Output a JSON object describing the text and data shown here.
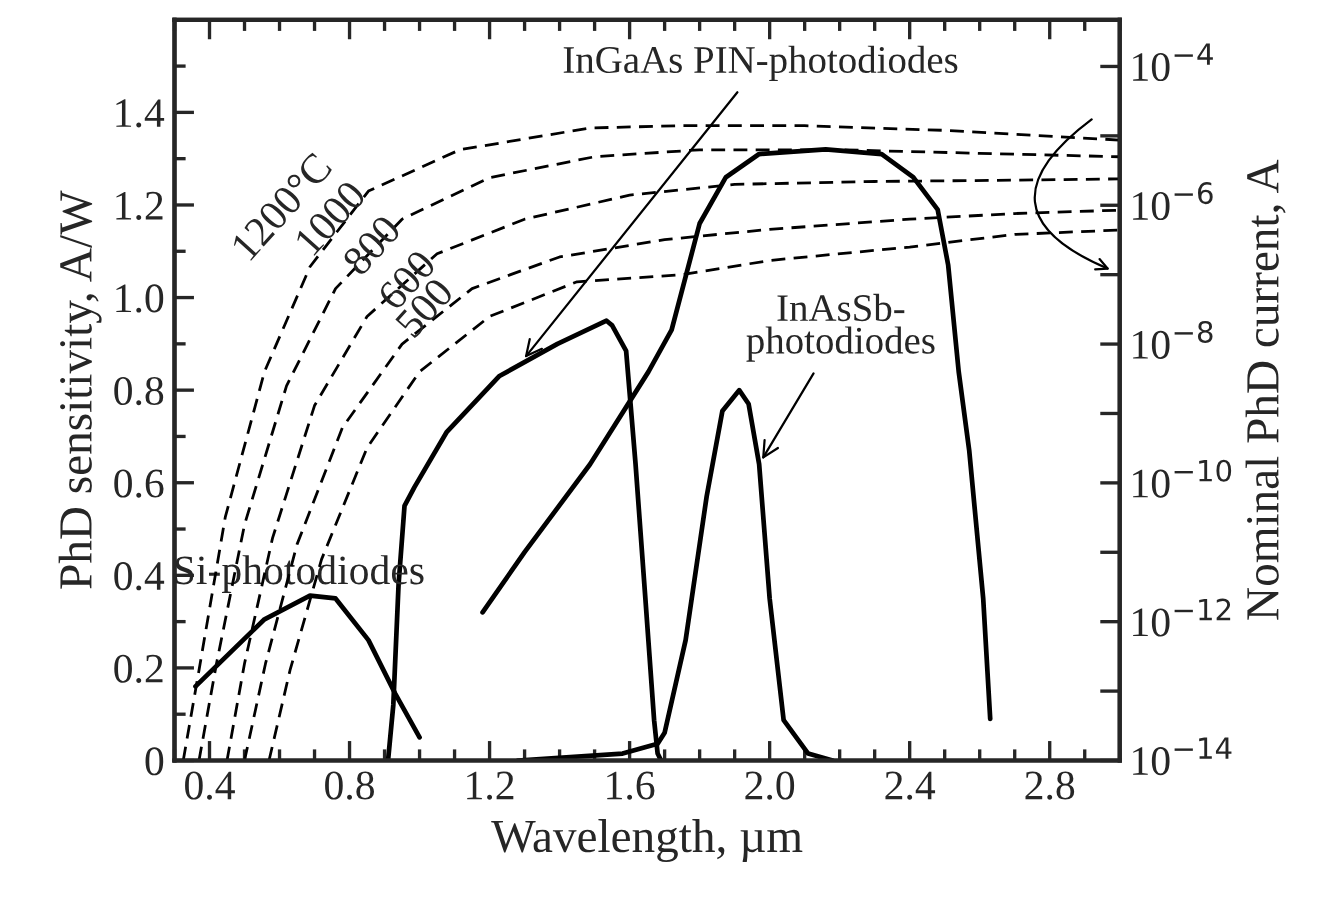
{
  "chart_data": {
    "type": "line",
    "xlabel": "Wavelength, µm",
    "ylabel": "PhD sensitivity, A/W",
    "y2label": "Nominal PhD current, A",
    "xlim": [
      0.3,
      3.0
    ],
    "xticks": [
      0.4,
      0.8,
      1.2,
      1.6,
      {
        "value": 2,
        "label": "2.0"
      },
      2.4,
      2.8
    ],
    "ylim": [
      0,
      1.6
    ],
    "yticks": [
      0,
      0.2,
      0.4,
      0.6,
      0.8,
      {
        "value": 1,
        "label": "1.0"
      },
      1.2,
      1.4
    ],
    "y2lim": [
      1e-14,
      0.00047
    ],
    "log": "y2",
    "y2ticks": [
      {
        "value": 1e-14,
        "label": "10$^{−14}$"
      },
      {
        "value": 1e-13,
        "label": null
      },
      {
        "value": 1e-12,
        "label": "10$^{−12}$"
      },
      {
        "value": 1e-11,
        "label": null
      },
      {
        "value": 1e-10,
        "label": "10$^{−10}$"
      },
      {
        "value": 1e-09,
        "label": null
      },
      {
        "value": 1e-08,
        "label": "10$^{−8}$"
      },
      {
        "value": 1e-07,
        "label": null
      },
      {
        "value": 1e-06,
        "label": "10$^{−6}$"
      },
      {
        "value": 1e-05,
        "label": null
      },
      {
        "value": 0.0001,
        "label": "10$^{−4}$"
      }
    ],
    "grid": false,
    "legend": false,
    "series": [
      {
        "color": "#000000",
        "line_style": "solid",
        "x": [
          0.36,
          0.557,
          0.687,
          0.76,
          0.854,
          0.93,
          1.0
        ],
        "values": [
          0.16,
          0.305,
          0.356,
          0.35,
          0.26,
          0.145,
          0.05
        ]
      },
      {
        "color": "#000000",
        "line_style": "solid",
        "x": [
          0.91,
          0.925,
          0.94,
          0.957,
          0.985,
          1.078,
          1.227,
          1.394,
          1.534,
          1.55,
          1.59,
          1.617,
          1.645,
          1.67,
          1.68,
          1.69
        ],
        "values": [
          0,
          0.12,
          0.38,
          0.55,
          0.59,
          0.71,
          0.83,
          0.9,
          0.95,
          0.94,
          0.885,
          0.64,
          0.35,
          0.087,
          0.015,
          0
        ]
      },
      {
        "color": "#000000",
        "line_style": "solid",
        "x": [
          1.18,
          1.3,
          1.487,
          1.654,
          1.72,
          1.8,
          1.875,
          1.97,
          2.16,
          2.32,
          2.41,
          2.48,
          2.51,
          2.54,
          2.57,
          2.61,
          2.63
        ],
        "values": [
          0.32,
          0.45,
          0.64,
          0.84,
          0.93,
          1.16,
          1.26,
          1.31,
          1.32,
          1.31,
          1.26,
          1.19,
          1.07,
          0.84,
          0.67,
          0.35,
          0.09
        ]
      },
      {
        "color": "#000000",
        "line_style": "solid",
        "x": [
          1.28,
          1.58,
          1.68,
          1.7,
          1.76,
          1.82,
          1.865,
          1.913,
          1.94,
          1.97,
          2.0,
          2.04,
          2.11,
          2.18
        ],
        "values": [
          0,
          0.015,
          0.036,
          0.06,
          0.26,
          0.57,
          0.755,
          0.8,
          0.77,
          0.64,
          0.35,
          0.087,
          0.015,
          0
        ]
      },
      {
        "name": "1200°C",
        "color": "#000000",
        "line_style": "dashed",
        "axis": "y2",
        "x": [
          0.325,
          0.37,
          0.445,
          0.557,
          0.687,
          0.854,
          1.115,
          1.487,
          1.75,
          2.1,
          2.5,
          3.0
        ],
        "values": [
          1e-14,
          2e-13,
          3.2e-11,
          4e-09,
          1.3e-07,
          1.6e-06,
          6.3e-06,
          1.3e-05,
          1.4e-05,
          1.4e-05,
          1.2e-05,
          8.7e-06
        ]
      },
      {
        "name": "1000",
        "color": "#000000",
        "line_style": "dashed",
        "axis": "y2",
        "x": [
          0.37,
          0.42,
          0.5,
          0.62,
          0.76,
          0.95,
          1.2,
          1.5,
          1.8,
          2.2,
          2.6,
          3.0
        ],
        "values": [
          1e-14,
          2.5e-13,
          2.5e-11,
          2.5e-09,
          6.3e-08,
          6.3e-07,
          2.5e-06,
          5e-06,
          6.3e-06,
          6.3e-06,
          5.6e-06,
          5e-06
        ]
      },
      {
        "name": "800",
        "color": "#000000",
        "line_style": "dashed",
        "axis": "y2",
        "x": [
          0.45,
          0.5,
          0.58,
          0.7,
          0.85,
          1.05,
          1.3,
          1.6,
          1.9,
          2.3,
          2.7,
          3.0
        ],
        "values": [
          1e-14,
          2.5e-13,
          1.6e-11,
          1.3e-09,
          2.5e-08,
          2e-07,
          6.3e-07,
          1.4e-06,
          2e-06,
          2.2e-06,
          2.3e-06,
          2.4e-06
        ]
      },
      {
        "name": "600",
        "color": "#000000",
        "line_style": "dashed",
        "axis": "y2",
        "x": [
          0.5,
          0.56,
          0.65,
          0.78,
          0.95,
          1.15,
          1.4,
          1.7,
          2.0,
          2.4,
          2.7,
          3.0
        ],
        "values": [
          1e-14,
          2.5e-13,
          1.3e-11,
          6.3e-10,
          1e-08,
          6.3e-08,
          1.8e-07,
          3.2e-07,
          4.5e-07,
          6.3e-07,
          7.6e-07,
          8.5e-07
        ]
      },
      {
        "name": "500",
        "color": "#000000",
        "line_style": "dashed",
        "axis": "y2",
        "x": [
          0.57,
          0.63,
          0.72,
          0.85,
          1.0,
          1.2,
          1.45,
          1.75,
          2.0,
          2.4,
          2.7,
          3.0
        ],
        "values": [
          1e-14,
          2e-13,
          7.9e-12,
          3.2e-10,
          4e-09,
          2.5e-08,
          7.9e-08,
          1e-07,
          1.6e-07,
          2.5e-07,
          3.8e-07,
          4.4e-07
        ]
      }
    ],
    "annotations": [
      {
        "text": "InGaAs PIN-photodiodes",
        "x": 1.29,
        "y": 0.86
      },
      {
        "text": "InAsSb-\nphotodiodes",
        "x": 1.97,
        "y": 0.64
      },
      {
        "text": "Si-photodiodes",
        "x": 0.687,
        "y": 0.356
      }
    ]
  }
}
